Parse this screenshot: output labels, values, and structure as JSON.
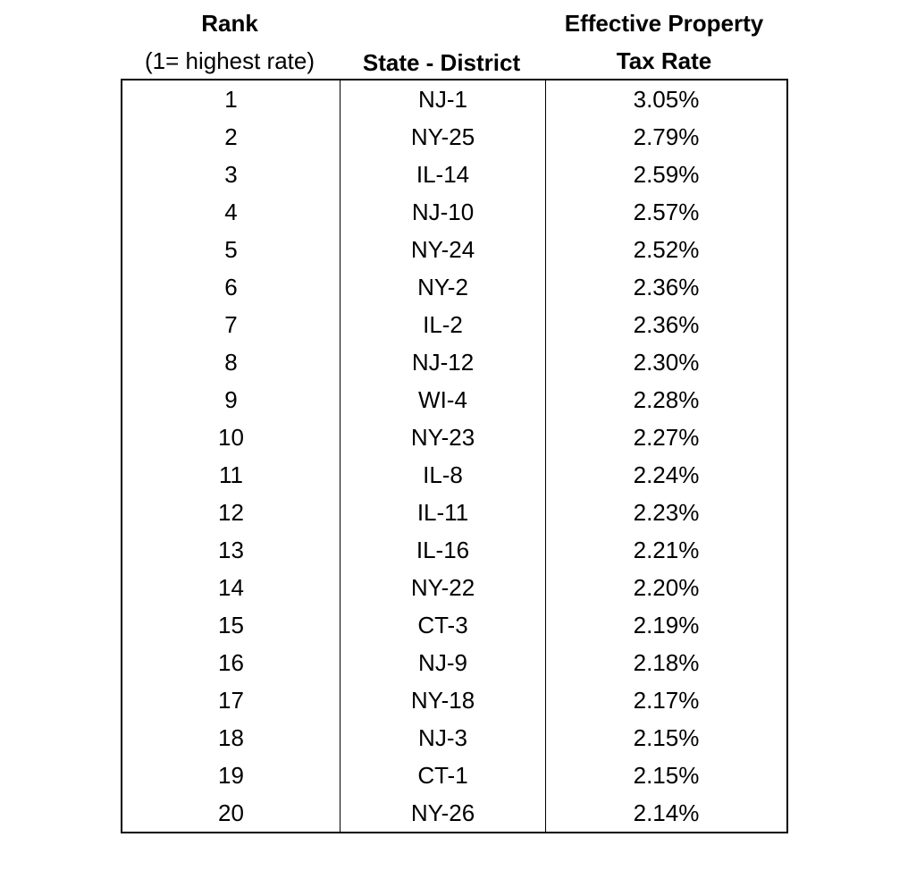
{
  "headers": {
    "rank_title": "Rank",
    "rank_subtitle": "(1= highest rate)",
    "state_district": "State - District",
    "rate_line1": "Effective Property",
    "rate_line2": "Tax Rate"
  },
  "rows": [
    {
      "rank": "1",
      "district": "NJ-1",
      "rate": "3.05%"
    },
    {
      "rank": "2",
      "district": "NY-25",
      "rate": "2.79%"
    },
    {
      "rank": "3",
      "district": "IL-14",
      "rate": "2.59%"
    },
    {
      "rank": "4",
      "district": "NJ-10",
      "rate": "2.57%"
    },
    {
      "rank": "5",
      "district": "NY-24",
      "rate": "2.52%"
    },
    {
      "rank": "6",
      "district": "NY-2",
      "rate": "2.36%"
    },
    {
      "rank": "7",
      "district": "IL-2",
      "rate": "2.36%"
    },
    {
      "rank": "8",
      "district": "NJ-12",
      "rate": "2.30%"
    },
    {
      "rank": "9",
      "district": "WI-4",
      "rate": "2.28%"
    },
    {
      "rank": "10",
      "district": "NY-23",
      "rate": "2.27%"
    },
    {
      "rank": "11",
      "district": "IL-8",
      "rate": "2.24%"
    },
    {
      "rank": "12",
      "district": "IL-11",
      "rate": "2.23%"
    },
    {
      "rank": "13",
      "district": "IL-16",
      "rate": "2.21%"
    },
    {
      "rank": "14",
      "district": "NY-22",
      "rate": "2.20%"
    },
    {
      "rank": "15",
      "district": "CT-3",
      "rate": "2.19%"
    },
    {
      "rank": "16",
      "district": "NJ-9",
      "rate": "2.18%"
    },
    {
      "rank": "17",
      "district": "NY-18",
      "rate": "2.17%"
    },
    {
      "rank": "18",
      "district": "NJ-3",
      "rate": "2.15%"
    },
    {
      "rank": "19",
      "district": "CT-1",
      "rate": "2.15%"
    },
    {
      "rank": "20",
      "district": "NY-26",
      "rate": "2.14%"
    }
  ]
}
